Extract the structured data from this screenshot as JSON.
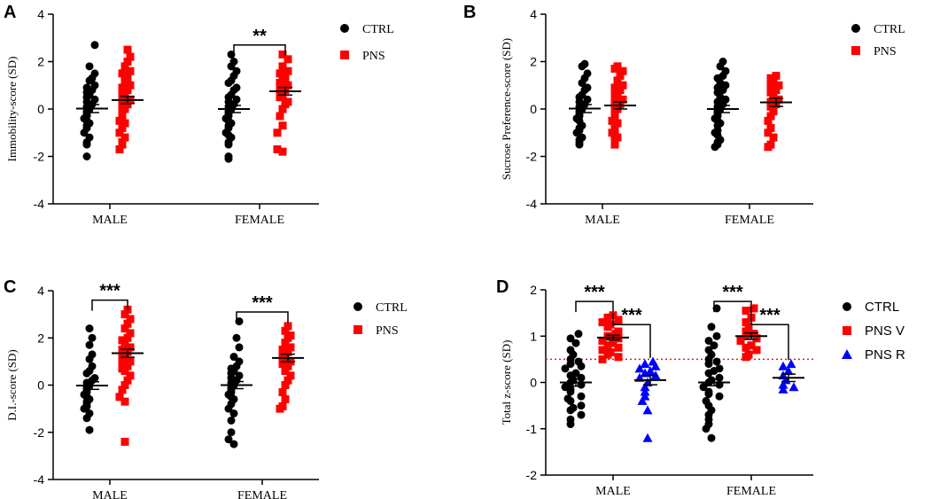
{
  "colors": {
    "ctrl": "#000000",
    "pns": "#ff0000",
    "pns_r": "#0000ff",
    "threshold": "#e41a1c"
  },
  "chart_data": [
    {
      "type": "scatter",
      "panel_label": "A",
      "ylabel": "Immobility-score (SD)",
      "yticks": [
        "4",
        "2",
        "0",
        "-2",
        "-4"
      ],
      "ylim": [
        -4,
        4
      ],
      "groups": [
        "MALE",
        "FEMALE"
      ],
      "legend": [
        {
          "label": "CTRL",
          "marker": "circle",
          "color": "#000000"
        },
        {
          "label": "PNS",
          "marker": "square",
          "color": "#ff0000"
        }
      ],
      "series": [
        {
          "name": "CTRL",
          "group": "MALE",
          "mean": 0.02,
          "sem": 0.17,
          "values": [
            2.7,
            1.8,
            1.5,
            1.3,
            1.2,
            1.0,
            0.9,
            0.8,
            0.7,
            0.6,
            0.5,
            0.4,
            0.3,
            0.2,
            0.1,
            0.0,
            -0.1,
            -0.2,
            -0.3,
            -0.4,
            -0.5,
            -0.6,
            -0.7,
            -0.8,
            -1.0,
            -1.2,
            -1.4,
            -1.5,
            -2.0
          ]
        },
        {
          "name": "PNS",
          "group": "MALE",
          "mean": 0.38,
          "sem": 0.15,
          "values": [
            2.5,
            2.2,
            2.0,
            1.8,
            1.6,
            1.5,
            1.3,
            1.2,
            1.0,
            0.9,
            0.8,
            0.7,
            0.6,
            0.5,
            0.4,
            0.3,
            0.2,
            0.1,
            0.0,
            -0.1,
            -0.2,
            -0.3,
            -0.5,
            -0.6,
            -0.8,
            -1.0,
            -1.2,
            -1.4,
            -1.5,
            -1.7
          ]
        },
        {
          "name": "CTRL",
          "group": "FEMALE",
          "mean": 0.0,
          "sem": 0.15,
          "values": [
            2.3,
            2.0,
            1.8,
            1.6,
            1.4,
            1.2,
            1.1,
            0.9,
            0.8,
            0.6,
            0.5,
            0.4,
            0.3,
            0.2,
            0.1,
            0.0,
            -0.1,
            -0.2,
            -0.3,
            -0.4,
            -0.5,
            -0.6,
            -0.7,
            -0.8,
            -1.0,
            -1.1,
            -1.2,
            -1.4,
            -1.5,
            -2.0,
            -2.1
          ]
        },
        {
          "name": "PNS",
          "group": "FEMALE",
          "mean": 0.75,
          "sem": 0.16,
          "values": [
            2.3,
            2.1,
            1.8,
            1.6,
            1.5,
            1.3,
            1.2,
            1.1,
            1.0,
            0.9,
            0.8,
            0.7,
            0.6,
            0.5,
            0.3,
            0.2,
            0.0,
            -0.3,
            -0.7,
            -1.0,
            -1.7,
            -1.8
          ]
        }
      ],
      "brackets": [
        {
          "from": "FEMALE:CTRL",
          "to": "FEMALE:PNS",
          "label": "**"
        }
      ]
    },
    {
      "type": "scatter",
      "panel_label": "B",
      "ylabel": "Sucrose Preference-score (SD)",
      "yticks": [
        "4",
        "2",
        "0",
        "-2",
        "-4"
      ],
      "ylim": [
        -4,
        4
      ],
      "groups": [
        "MALE",
        "FEMALE"
      ],
      "legend": [
        {
          "label": "CTRL",
          "marker": "circle",
          "color": "#000000"
        },
        {
          "label": "PNS",
          "marker": "square",
          "color": "#ff0000"
        }
      ],
      "series": [
        {
          "name": "CTRL",
          "group": "MALE",
          "mean": 0.02,
          "sem": 0.17,
          "values": [
            1.9,
            1.8,
            1.5,
            1.3,
            1.1,
            0.9,
            0.8,
            0.6,
            0.5,
            0.4,
            0.3,
            0.2,
            0.1,
            0.0,
            -0.1,
            -0.2,
            -0.3,
            -0.4,
            -0.5,
            -0.7,
            -0.8,
            -0.9,
            -1.0,
            -1.2,
            -1.3,
            -1.4,
            -1.5
          ]
        },
        {
          "name": "PNS",
          "group": "MALE",
          "mean": 0.15,
          "sem": 0.15,
          "values": [
            1.8,
            1.7,
            1.6,
            1.4,
            1.2,
            1.0,
            0.9,
            0.8,
            0.7,
            0.6,
            0.5,
            0.4,
            0.3,
            0.2,
            0.1,
            0.0,
            -0.1,
            -0.2,
            -0.3,
            -0.5,
            -0.6,
            -0.7,
            -0.8,
            -1.0,
            -1.1,
            -1.2,
            -1.3,
            -1.4,
            -1.5
          ]
        },
        {
          "name": "CTRL",
          "group": "FEMALE",
          "mean": 0.0,
          "sem": 0.15,
          "values": [
            2.0,
            1.8,
            1.6,
            1.4,
            1.3,
            1.1,
            1.0,
            0.9,
            0.8,
            0.7,
            0.5,
            0.4,
            0.3,
            0.2,
            0.1,
            0.0,
            -0.1,
            -0.2,
            -0.3,
            -0.4,
            -0.5,
            -0.6,
            -0.7,
            -0.9,
            -1.0,
            -1.1,
            -1.3,
            -1.4,
            -1.5,
            -1.6
          ]
        },
        {
          "name": "PNS",
          "group": "FEMALE",
          "mean": 0.28,
          "sem": 0.17,
          "values": [
            1.4,
            1.3,
            1.2,
            1.1,
            1.0,
            0.9,
            0.8,
            0.7,
            0.6,
            0.4,
            0.3,
            0.2,
            0.1,
            -0.1,
            -0.3,
            -0.5,
            -0.8,
            -1.0,
            -1.2,
            -1.5,
            -1.6
          ]
        }
      ],
      "brackets": []
    },
    {
      "type": "scatter",
      "panel_label": "C",
      "ylabel": "D.I.-score (SD)",
      "yticks": [
        "4",
        "2",
        "0",
        "-2",
        "-4"
      ],
      "ylim": [
        -4,
        4
      ],
      "groups": [
        "MALE",
        "FEMALE"
      ],
      "legend": [
        {
          "label": "CTRL",
          "marker": "circle",
          "color": "#000000"
        },
        {
          "label": "PNS",
          "marker": "square",
          "color": "#ff0000"
        }
      ],
      "series": [
        {
          "name": "CTRL",
          "group": "MALE",
          "mean": -0.02,
          "sem": 0.16,
          "values": [
            2.4,
            2.0,
            1.7,
            1.3,
            1.1,
            0.8,
            0.6,
            0.5,
            0.3,
            0.2,
            0.1,
            0.0,
            -0.1,
            -0.2,
            -0.3,
            -0.4,
            -0.5,
            -0.6,
            -0.7,
            -0.8,
            -0.9,
            -1.0,
            -1.2,
            -1.4,
            -1.9
          ]
        },
        {
          "name": "PNS",
          "group": "MALE",
          "mean": 1.35,
          "sem": 0.17,
          "values": [
            3.2,
            3.0,
            2.8,
            2.6,
            2.4,
            2.2,
            2.0,
            1.9,
            1.8,
            1.6,
            1.5,
            1.4,
            1.3,
            1.2,
            1.1,
            1.0,
            0.9,
            0.8,
            0.7,
            0.6,
            0.4,
            0.2,
            0.0,
            -0.2,
            -0.5,
            -0.7,
            -2.4
          ]
        },
        {
          "name": "CTRL",
          "group": "FEMALE",
          "mean": 0.0,
          "sem": 0.15,
          "values": [
            2.7,
            2.0,
            1.6,
            1.2,
            1.0,
            0.8,
            0.7,
            0.6,
            0.5,
            0.4,
            0.3,
            0.2,
            0.1,
            0.0,
            -0.1,
            -0.2,
            -0.3,
            -0.4,
            -0.5,
            -0.6,
            -0.8,
            -1.0,
            -1.2,
            -1.5,
            -2.0,
            -2.3,
            -2.5
          ]
        },
        {
          "name": "PNS",
          "group": "FEMALE",
          "mean": 1.15,
          "sem": 0.16,
          "values": [
            2.5,
            2.3,
            2.1,
            2.0,
            1.8,
            1.6,
            1.5,
            1.4,
            1.3,
            1.2,
            1.1,
            1.0,
            0.9,
            0.8,
            0.6,
            0.4,
            0.2,
            0.0,
            -0.3,
            -0.6,
            -0.9,
            -1.0
          ]
        }
      ],
      "brackets": [
        {
          "from": "MALE:CTRL",
          "to": "MALE:PNS",
          "label": "***"
        },
        {
          "from": "FEMALE:CTRL",
          "to": "FEMALE:PNS",
          "label": "***"
        }
      ]
    },
    {
      "type": "scatter",
      "panel_label": "D",
      "ylabel": "Total z-score (SD)",
      "yticks": [
        "2",
        "1",
        "0",
        "-1",
        "-2"
      ],
      "ylim": [
        -2,
        2
      ],
      "groups": [
        "MALE",
        "FEMALE"
      ],
      "reference_line": 0.5,
      "legend": [
        {
          "label": "CTRL",
          "marker": "circle",
          "color": "#000000"
        },
        {
          "label": "PNS V",
          "marker": "square",
          "color": "#ff0000"
        },
        {
          "label": "PNS R",
          "marker": "triangle",
          "color": "#0000ff"
        }
      ],
      "series": [
        {
          "name": "CTRL",
          "group": "MALE",
          "mean": 0.0,
          "sem": 0.08,
          "values": [
            1.05,
            0.95,
            0.85,
            0.7,
            0.6,
            0.5,
            0.45,
            0.4,
            0.35,
            0.3,
            0.2,
            0.15,
            0.1,
            0.05,
            0.0,
            -0.05,
            -0.1,
            -0.15,
            -0.2,
            -0.3,
            -0.35,
            -0.4,
            -0.5,
            -0.55,
            -0.6,
            -0.7,
            -0.8,
            -0.9
          ]
        },
        {
          "name": "PNS V",
          "group": "MALE",
          "mean": 0.97,
          "sem": 0.05,
          "values": [
            1.45,
            1.4,
            1.35,
            1.3,
            1.25,
            1.2,
            1.1,
            1.05,
            1.0,
            0.95,
            0.9,
            0.85,
            0.8,
            0.75,
            0.7,
            0.65,
            0.6,
            0.55,
            0.5
          ]
        },
        {
          "name": "PNS R",
          "group": "MALE",
          "mean": 0.05,
          "sem": 0.1,
          "values": [
            0.45,
            0.4,
            0.35,
            0.3,
            0.25,
            0.2,
            0.15,
            0.1,
            0.0,
            -0.1,
            -0.2,
            -0.3,
            -0.4,
            -0.6,
            -1.2
          ]
        },
        {
          "name": "CTRL",
          "group": "FEMALE",
          "mean": 0.0,
          "sem": 0.07,
          "values": [
            1.6,
            1.2,
            1.0,
            0.9,
            0.8,
            0.7,
            0.6,
            0.5,
            0.45,
            0.4,
            0.3,
            0.25,
            0.2,
            0.1,
            0.05,
            0.0,
            -0.05,
            -0.1,
            -0.2,
            -0.25,
            -0.3,
            -0.4,
            -0.5,
            -0.6,
            -0.7,
            -0.8,
            -0.9,
            -1.0,
            -1.2
          ]
        },
        {
          "name": "PNS V",
          "group": "FEMALE",
          "mean": 1.0,
          "sem": 0.07,
          "values": [
            1.6,
            1.55,
            1.4,
            1.3,
            1.2,
            1.1,
            1.05,
            1.0,
            0.95,
            0.9,
            0.8,
            0.75,
            0.7,
            0.6,
            0.55
          ]
        },
        {
          "name": "PNS R",
          "group": "FEMALE",
          "mean": 0.1,
          "sem": 0.08,
          "values": [
            0.4,
            0.35,
            0.25,
            0.15,
            0.05,
            -0.05,
            -0.1,
            -0.15
          ]
        }
      ],
      "brackets": [
        {
          "from": "MALE:CTRL",
          "to": "MALE:PNS V",
          "label": "***"
        },
        {
          "from": "MALE:PNS V",
          "to": "MALE:PNS R",
          "label": "***"
        },
        {
          "from": "FEMALE:CTRL",
          "to": "FEMALE:PNS V",
          "label": "***"
        },
        {
          "from": "FEMALE:PNS V",
          "to": "FEMALE:PNS R",
          "label": "***"
        }
      ]
    }
  ]
}
